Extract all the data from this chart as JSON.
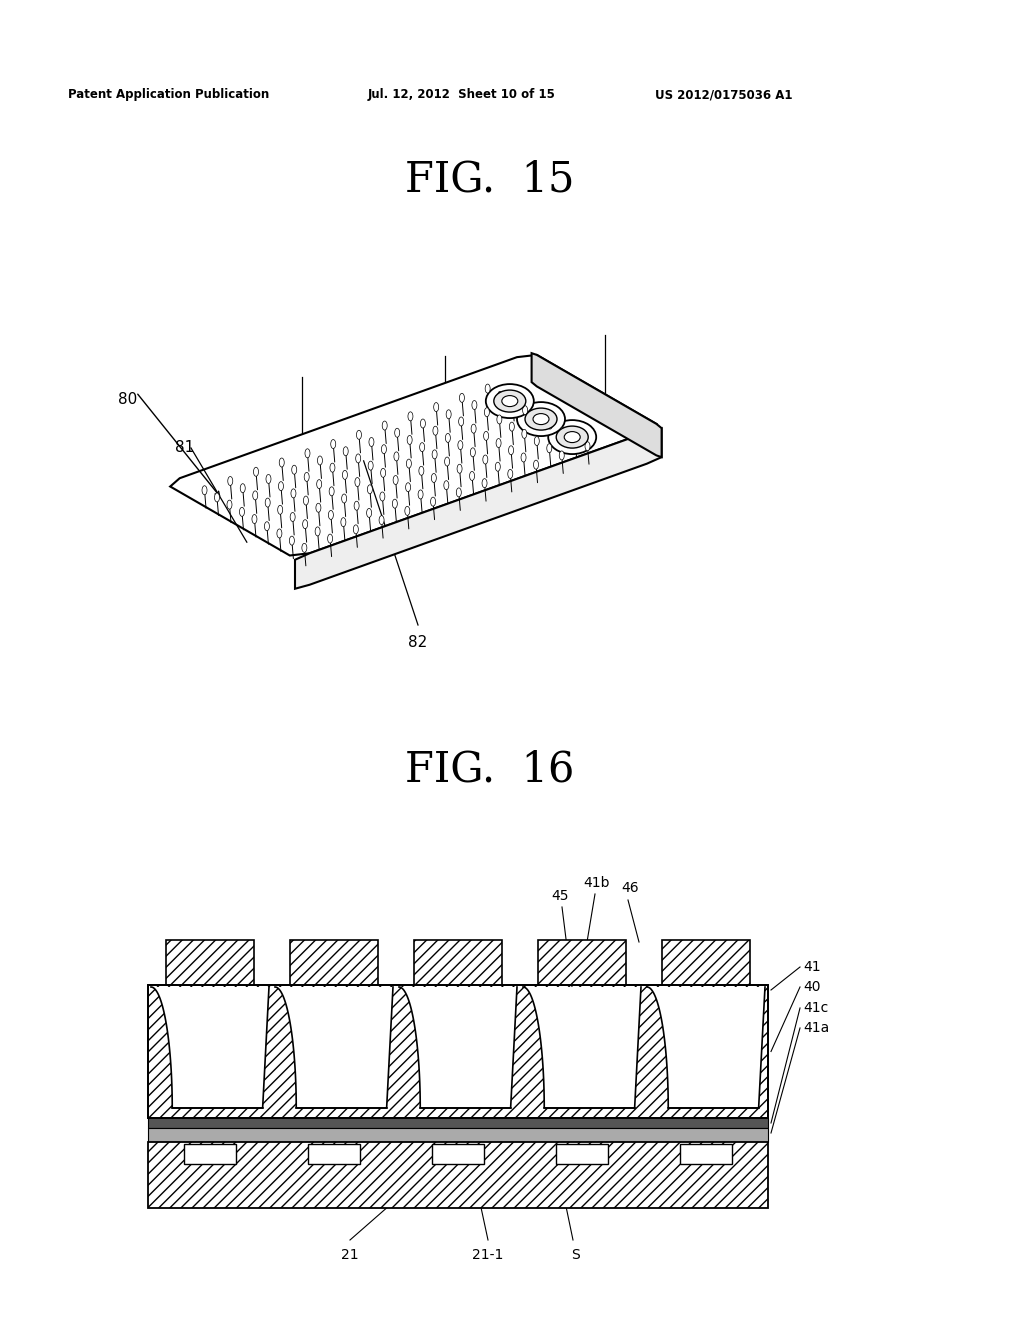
{
  "header_left": "Patent Application Publication",
  "header_mid": "Jul. 12, 2012  Sheet 10 of 15",
  "header_right": "US 2012/0175036 A1",
  "fig15_title": "FIG.  15",
  "fig16_title": "FIG.  16",
  "bg_color": "#ffffff",
  "line_color": "#000000"
}
